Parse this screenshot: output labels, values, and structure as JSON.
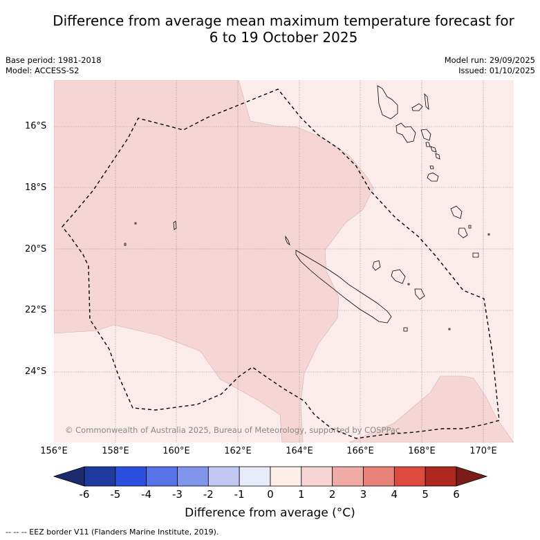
{
  "title_line1": "Difference from average mean maximum temperature forecast for",
  "title_line2": "6 to 19 October 2025",
  "base_period": "Base period: 1981-2018",
  "model": "Model: ACCESS-S2",
  "model_run": "Model run: 29/09/2025",
  "issued": "Issued: 01/10/2025",
  "copyright": "© Commonwealth of Australia 2025, Bureau of Meteorology, supported by COSPPac",
  "lat_labels": [
    "16°S",
    "18°S",
    "20°S",
    "22°S",
    "24°S"
  ],
  "lon_labels": [
    "156°E",
    "158°E",
    "160°E",
    "162°E",
    "164°E",
    "166°E",
    "168°E",
    "170°E"
  ],
  "colorbar": {
    "ticks": [
      "-6",
      "-5",
      "-4",
      "-3",
      "-2",
      "-1",
      "0",
      "1",
      "2",
      "3",
      "4",
      "5",
      "6"
    ],
    "colors": [
      "#1f3a9e",
      "#2c4fe0",
      "#5872e8",
      "#8194ec",
      "#c2c8f4",
      "#e8ebfa",
      "#fdeeea",
      "#f6d5d3",
      "#f0aba6",
      "#e8837a",
      "#dc4b3d",
      "#ad2820"
    ],
    "low_color": "#1c2a6e",
    "high_color": "#7a1c18",
    "title": "Difference from average (°C)"
  },
  "footer": "-- -- -- EEZ border V11 (Flanders Marine Institute, 2019).",
  "colors": {
    "light_fill": "#fbebea",
    "mid_fill": "#f5d6d4"
  }
}
